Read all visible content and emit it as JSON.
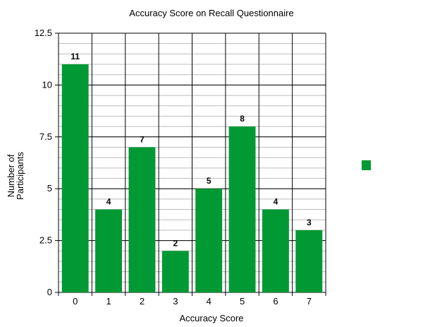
{
  "chart_data": {
    "type": "bar",
    "title": "Accuracy Score on Recall Questionnaire",
    "xlabel": "Accuracy Score",
    "ylabel_lines": [
      "Number of",
      "Participants"
    ],
    "categories": [
      "0",
      "1",
      "2",
      "3",
      "4",
      "5",
      "6",
      "7"
    ],
    "values": [
      11,
      4,
      7,
      2,
      5,
      8,
      4,
      3
    ],
    "ylim": [
      0,
      12.5
    ],
    "yticks": [
      "0",
      "2.5",
      "5",
      "7.5",
      "10",
      "12.5"
    ],
    "ytick_values": [
      0,
      2.5,
      5,
      7.5,
      10,
      12.5
    ],
    "minor_grid_step": 0.5,
    "grid": true,
    "bar_color": "#009933",
    "legend": {
      "placement": "right",
      "entries": [
        ""
      ]
    }
  }
}
